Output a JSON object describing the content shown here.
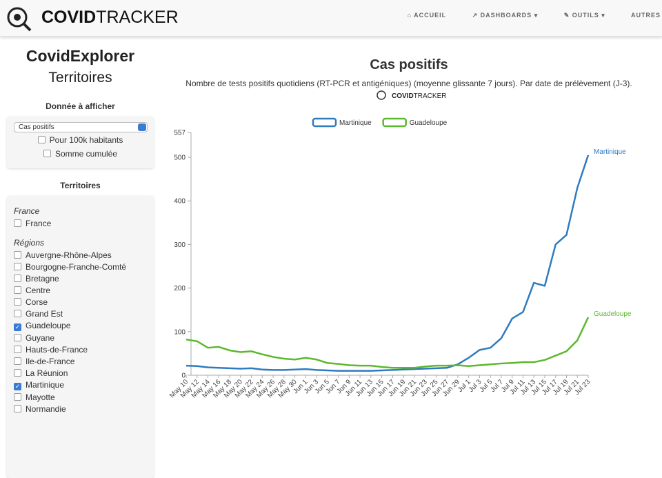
{
  "nav": {
    "brand_bold": "COVID",
    "brand_light": "TRACKER",
    "items": [
      "ACCUEIL",
      "DASHBOARDS",
      "OUTILS",
      "AUTRES"
    ]
  },
  "sidebar": {
    "title": "CovidExplorer",
    "subtitle": "Territoires",
    "data_heading": "Donnée à afficher",
    "select": "Cas positifs",
    "options": [
      {
        "label": "Pour 100k habitants",
        "checked": false
      },
      {
        "label": "Somme cumulée",
        "checked": false
      }
    ],
    "territories_heading": "Territoires",
    "groups": [
      {
        "label": "France",
        "items": [
          {
            "label": "France",
            "checked": false
          }
        ]
      },
      {
        "label": "Régions",
        "items": [
          {
            "label": "Auvergne-Rhône-Alpes",
            "checked": false
          },
          {
            "label": "Bourgogne-Franche-Comté",
            "checked": false
          },
          {
            "label": "Bretagne",
            "checked": false
          },
          {
            "label": "Centre",
            "checked": false
          },
          {
            "label": "Corse",
            "checked": false
          },
          {
            "label": "Grand Est",
            "checked": false
          },
          {
            "label": "Guadeloupe",
            "checked": true
          },
          {
            "label": "Guyane",
            "checked": false
          },
          {
            "label": "Hauts-de-France",
            "checked": false
          },
          {
            "label": "Ile-de-France",
            "checked": false
          },
          {
            "label": "La Réunion",
            "checked": false
          },
          {
            "label": "Martinique",
            "checked": true
          },
          {
            "label": "Mayotte",
            "checked": false
          },
          {
            "label": "Normandie",
            "checked": false
          }
        ]
      }
    ]
  },
  "chart_data": {
    "type": "line",
    "title": "Cas positifs",
    "subtitle": "Nombre de tests positifs quotidiens (RT-PCR et antigéniques) (moyenne glissante 7 jours). Par date de prélèvement (J-3).",
    "categories": [
      "May 10",
      "May 12",
      "May 14",
      "May 16",
      "May 18",
      "May 20",
      "May 22",
      "May 24",
      "May 26",
      "May 28",
      "May 30",
      "Jun 1",
      "Jun 3",
      "Jun 5",
      "Jun 7",
      "Jun 9",
      "Jun 11",
      "Jun 13",
      "Jun 15",
      "Jun 17",
      "Jun 19",
      "Jun 21",
      "Jun 23",
      "Jun 25",
      "Jun 27",
      "Jun 29",
      "Jul 1",
      "Jul 3",
      "Jul 5",
      "Jul 7",
      "Jul 9",
      "Jul 11",
      "Jul 13",
      "Jul 15",
      "Jul 17",
      "Jul 19",
      "Jul 21",
      "Jul 23"
    ],
    "series": [
      {
        "name": "Martinique",
        "color": "#2e7bbf",
        "values": [
          22,
          21,
          18,
          17,
          16,
          15,
          16,
          13,
          12,
          12,
          13,
          14,
          12,
          11,
          10,
          10,
          10,
          10,
          11,
          12,
          13,
          14,
          15,
          16,
          17,
          25,
          40,
          58,
          63,
          85,
          130,
          145,
          212,
          205,
          300,
          322,
          430,
          505
        ]
      },
      {
        "name": "Guadeloupe",
        "color": "#5cb82e",
        "values": [
          82,
          78,
          63,
          65,
          57,
          53,
          55,
          48,
          42,
          38,
          36,
          40,
          36,
          28,
          26,
          23,
          22,
          22,
          19,
          17,
          17,
          17,
          20,
          22,
          22,
          23,
          21,
          23,
          25,
          27,
          28,
          30,
          30,
          35,
          45,
          55,
          80,
          133
        ]
      }
    ],
    "ylim": [
      0,
      557
    ],
    "yticks": [
      0,
      100,
      200,
      300,
      400,
      500,
      557
    ],
    "grid": false,
    "legend": "top"
  }
}
